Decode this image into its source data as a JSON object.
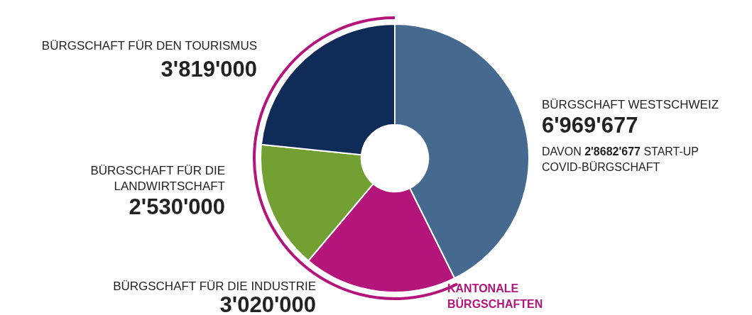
{
  "chart_data": {
    "type": "donut",
    "categories": [
      "BÜRGSCHAFT WESTSCHWEIZ",
      "BÜRGSCHAFT FÜR DIE INDUSTRIE",
      "BÜRGSCHAFT FÜR DIE LANDWIRTSCHAFT",
      "BÜRGSCHAFT FÜR DEN TOURISMUS"
    ],
    "values": [
      6969677,
      3020000,
      2530000,
      3819000
    ],
    "value_labels": [
      "6'969'677",
      "3'020'000",
      "2'530'000",
      "3'819'000"
    ],
    "colors": [
      "#46698f",
      "#b3157a",
      "#72a032",
      "#0f2c58"
    ],
    "annotations": [
      "DAVON 2'8682'677 START-UP COVID-BÜRGSCHAFT",
      "KANTONALE BÜRGSCHAFTEN"
    ],
    "legend": false
  }
}
